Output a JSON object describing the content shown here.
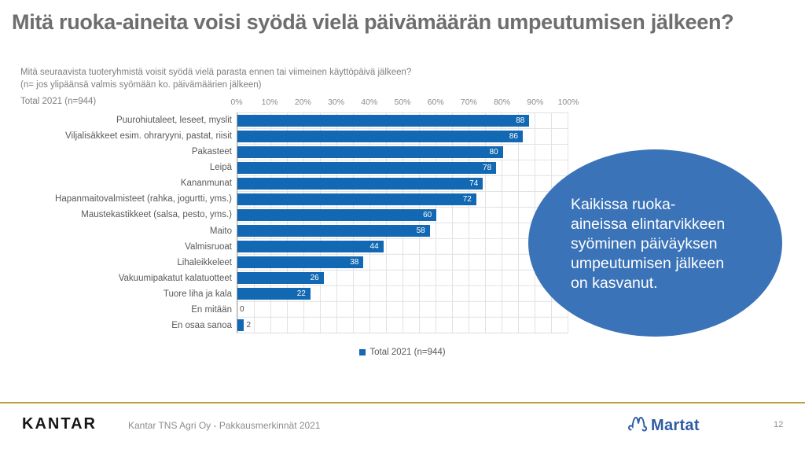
{
  "slide": {
    "title": "Mitä ruoka-aineita voisi syödä vielä päivämäärän umpeutumisen jälkeen?"
  },
  "chart": {
    "subtitle_line1": "Mitä seuraavista tuoteryhmistä voisit syödä vielä parasta ennen tai viimeinen käyttöpäivä jälkeen?",
    "subtitle_line2": "(n= jos ylipäänsä valmis syömään ko. päivämäärien jälkeen)",
    "total_label": "Total 2021 (n=944)",
    "legend_label": "Total 2021 (n=944)"
  },
  "chart_data": {
    "type": "bar",
    "orientation": "horizontal",
    "title": "Mitä ruoka-aineita voisi syödä vielä päivämäärän umpeutumisen jälkeen?",
    "subtitle": "Mitä seuraavista tuoteryhmistä voisit syödä vielä parasta ennen tai viimeinen käyttöpäivä jälkeen? (n= jos ylipäänsä valmis syömään ko. päivämäärien jälkeen)",
    "categories": [
      "Puurohiutaleet, leseet, myslit",
      "Viljalisäkkeet esim. ohraryyni, pastat, riisit",
      "Pakasteet",
      "Leipä",
      "Kananmunat",
      "Hapanmaitovalmisteet (rahka, jogurtti, yms.)",
      "Maustekastikkeet (salsa, pesto, yms.)",
      "Maito",
      "Valmisruoat",
      "Lihaleikkeleet",
      "Vakuumipakatut kalatuotteet",
      "Tuore liha ja kala",
      "En mitään",
      "En osaa sanoa"
    ],
    "series": [
      {
        "name": "Total 2021 (n=944)",
        "values": [
          88,
          86,
          80,
          78,
          74,
          72,
          60,
          58,
          44,
          38,
          26,
          22,
          0,
          2
        ]
      }
    ],
    "x_ticks": [
      "0%",
      "10%",
      "20%",
      "30%",
      "40%",
      "50%",
      "60%",
      "70%",
      "80%",
      "90%",
      "100%"
    ],
    "xlim": [
      0,
      100
    ],
    "value_unit": "%",
    "grid": true,
    "legend_position": "bottom",
    "bar_color": "#1268B2"
  },
  "callout": {
    "text": "Kaikissa ruoka-aineissa elintarvikkeen syöminen päiväyksen umpeutumisen jälkeen on kasvanut.",
    "lines": [
      "Kaikissa ruoka-",
      "aineissa elintarvikkeen",
      "syöminen päiväyksen",
      "umpeutumisen jälkeen",
      "on kasvanut."
    ]
  },
  "footer": {
    "kantar_logo": "KANTAR",
    "source": "Kantar TNS Agri Oy - Pakkausmerkinnät 2021",
    "martat_logo": "Martat",
    "page": "12"
  },
  "colors": {
    "bar": "#1268B2",
    "callout": "#3B73B8",
    "martat": "#2D5CA5",
    "title": "#6E6E6E",
    "subtext": "#7F7F7F",
    "grid": "#E2E2E2",
    "gold": "#B7952F"
  }
}
